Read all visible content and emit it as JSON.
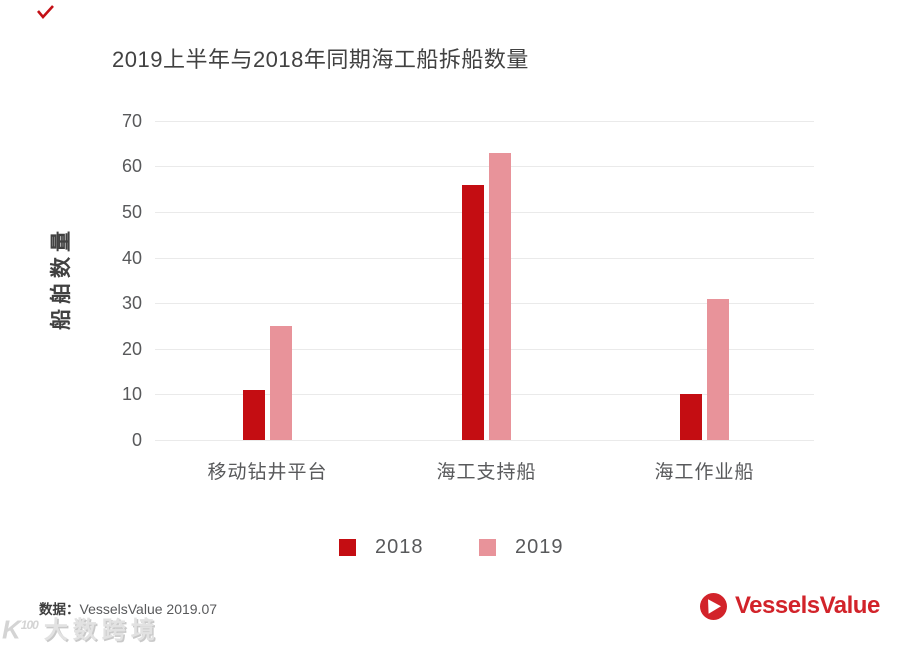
{
  "title": "2019上半年与2018年同期海工船拆船数量",
  "chart_data": {
    "type": "bar",
    "title": "2019上半年与2018年同期海工船拆船数量",
    "categories": [
      "移动钻井平台",
      "海工支持船",
      "海工作业船"
    ],
    "series": [
      {
        "name": "2018",
        "color": "#c40d12",
        "values": [
          11,
          56,
          10
        ]
      },
      {
        "name": "2019",
        "color": "#e8939a",
        "values": [
          25,
          63,
          31
        ]
      }
    ],
    "xlabel": "",
    "ylabel": "船舶数量",
    "ylim": [
      0,
      70
    ],
    "yticks": [
      0,
      10,
      20,
      30,
      40,
      50,
      60,
      70
    ],
    "grid": "horizontal",
    "gridline_color": "#eaeaea",
    "legend_position": "bottom"
  },
  "legend": {
    "items": [
      {
        "label": "2018",
        "color": "#c40d12"
      },
      {
        "label": "2019",
        "color": "#e8939a"
      }
    ]
  },
  "footer": {
    "source_label": "数据：",
    "source_text": "VesselsValue 2019.07"
  },
  "watermark": {
    "icon_text": "K",
    "icon_sup": "100",
    "text": "大数跨境"
  },
  "brand": {
    "name": "VesselsValue",
    "color": "#d2232a"
  }
}
